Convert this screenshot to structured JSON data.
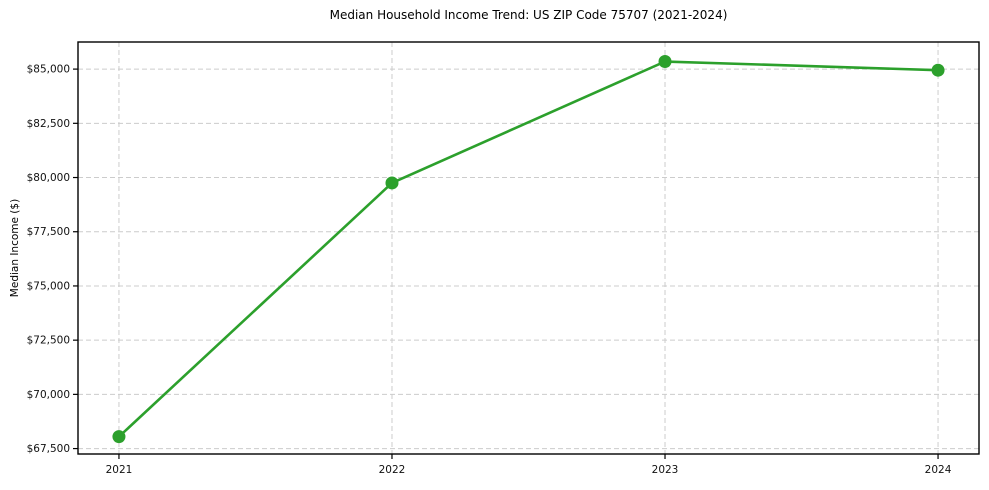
{
  "chart_data": {
    "type": "line",
    "title": "Median Household Income Trend: US ZIP Code 75707 (2021-2024)",
    "xlabel": "",
    "ylabel": "Median Income ($)",
    "categories": [
      "2021",
      "2022",
      "2023",
      "2024"
    ],
    "series": [
      {
        "name": "Median Household Income",
        "values": [
          68050,
          79750,
          85350,
          84950
        ]
      }
    ],
    "y_ticks": [
      67500,
      70000,
      72500,
      75000,
      77500,
      80000,
      82500,
      85000
    ],
    "y_tick_labels": [
      "$67,500",
      "$70,000",
      "$72,500",
      "$75,000",
      "$77,500",
      "$80,000",
      "$82,500",
      "$85,000"
    ],
    "ylim": [
      67250,
      86250
    ],
    "grid": true,
    "legend": "none",
    "line_color": "#2ca02c",
    "marker": "circle",
    "marker_color": "#2ca02c",
    "grid_color": "#cccccc",
    "frame_color": "#000000",
    "background_color": "#ffffff"
  }
}
